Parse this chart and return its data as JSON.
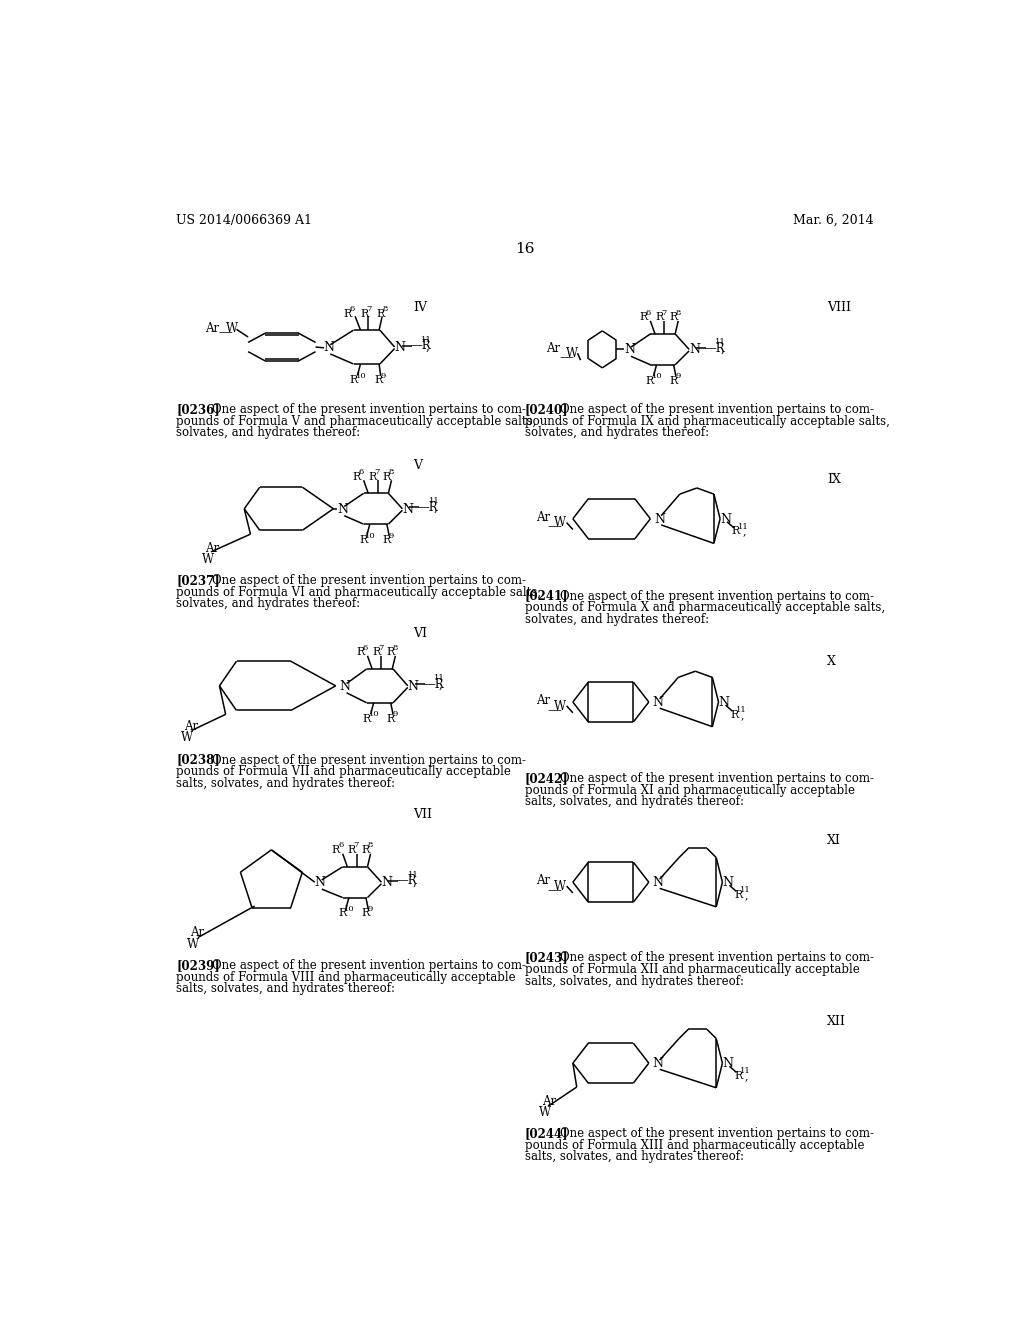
{
  "page_width": 10.24,
  "page_height": 13.2,
  "bg_color": "#ffffff",
  "header_left": "US 2014/0066369 A1",
  "header_right": "Mar. 6, 2014",
  "page_number": "16"
}
